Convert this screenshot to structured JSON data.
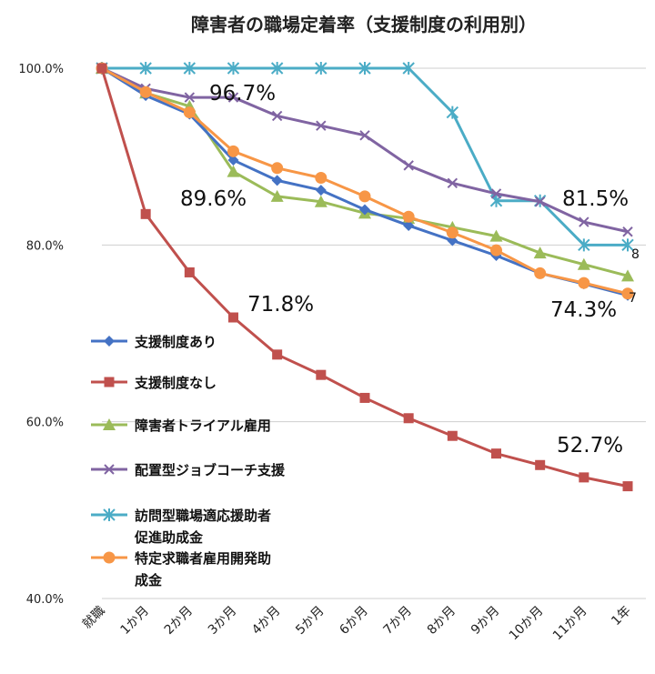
{
  "chart_data": {
    "type": "line",
    "title": "障害者の職場定着率（支援制度の利用別）",
    "categories": [
      "就職",
      "1か月",
      "2か月",
      "3か月",
      "4か月",
      "5か月",
      "6か月",
      "7か月",
      "8か月",
      "9か月",
      "10か月",
      "11か月",
      "1年"
    ],
    "ylim": [
      40,
      100
    ],
    "yticks": [
      "40.0%",
      "60.0%",
      "80.0%",
      "100.0%"
    ],
    "ytick_values": [
      40,
      60,
      80,
      100
    ],
    "grid": true,
    "legend_position": "left",
    "series": [
      {
        "name": "支援制度あり",
        "color": "#4472C4",
        "marker": "diamond",
        "values": [
          100,
          96.9,
          94.8,
          89.6,
          87.3,
          86.2,
          84.0,
          82.2,
          80.5,
          78.8,
          76.8,
          75.6,
          74.3
        ]
      },
      {
        "name": "支援制度なし",
        "color": "#C0504D",
        "marker": "square",
        "values": [
          100,
          83.5,
          76.9,
          71.8,
          67.6,
          65.3,
          62.7,
          60.4,
          58.4,
          56.4,
          55.1,
          53.7,
          52.7
        ]
      },
      {
        "name": "障害者トライアル雇用",
        "color": "#9BBB59",
        "marker": "triangle",
        "values": [
          100,
          97.2,
          95.7,
          88.3,
          85.5,
          84.9,
          83.6,
          83.0,
          82.0,
          81.0,
          79.1,
          77.8,
          76.5
        ]
      },
      {
        "name": "配置型ジョブコーチ支援",
        "color": "#8064A2",
        "marker": "x",
        "values": [
          100,
          97.7,
          96.7,
          96.7,
          94.6,
          93.5,
          92.4,
          89.0,
          87.0,
          85.8,
          84.9,
          82.6,
          81.5
        ]
      },
      {
        "name": "訪問型職場適応援助者促進助成金",
        "color": "#4BACC6",
        "marker": "asterisk",
        "values": [
          100,
          100,
          100,
          100,
          100,
          100,
          100,
          100,
          95.0,
          85.0,
          85.0,
          80.0,
          80.0
        ]
      },
      {
        "name": "特定求職者雇用開発助成金",
        "color": "#F79646",
        "marker": "circle",
        "values": [
          100,
          97.3,
          95.0,
          90.6,
          88.7,
          87.6,
          85.5,
          83.2,
          81.4,
          79.4,
          76.8,
          75.7,
          74.5
        ]
      }
    ],
    "legend_lines": [
      [
        "支援制度あり"
      ],
      [
        "支援制度なし"
      ],
      [
        "障害者トライアル雇用"
      ],
      [
        "配置型ジョブコーチ支援"
      ],
      [
        "訪問型職場適応援助者",
        "促進助成金"
      ],
      [
        "特定求職者雇用開発助",
        "成金"
      ]
    ],
    "annotations": [
      "96.7%",
      "89.6%",
      "71.8%",
      "81.5%",
      "74.3%",
      "52.7%",
      "8",
      "7"
    ]
  }
}
